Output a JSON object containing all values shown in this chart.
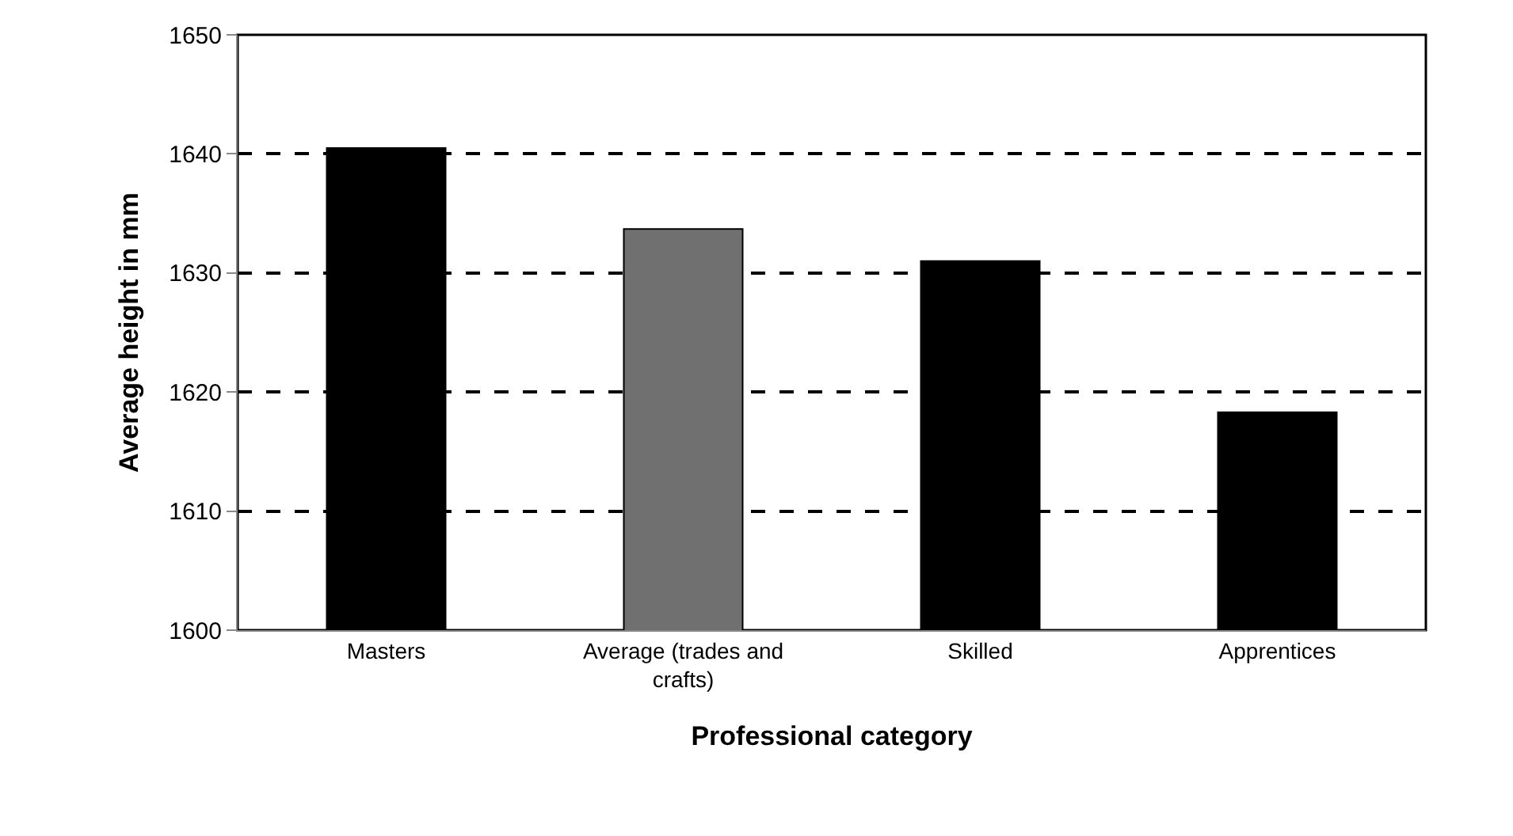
{
  "chart_data": {
    "type": "bar",
    "xlabel": "Professional category",
    "ylabel": "Average height in mm",
    "categories": [
      "Masters",
      "Average (trades and crafts)",
      "Skilled",
      "Apprentices"
    ],
    "values": [
      1640.5,
      1633.7,
      1631.0,
      1618.3
    ],
    "colors": [
      "#000000",
      "#707070",
      "#000000",
      "#000000"
    ],
    "ylim": [
      1600,
      1650
    ],
    "yticks": [
      1600,
      1610,
      1620,
      1630,
      1640,
      1650
    ],
    "grid": "y",
    "line_style": "dashed",
    "legend": false
  }
}
